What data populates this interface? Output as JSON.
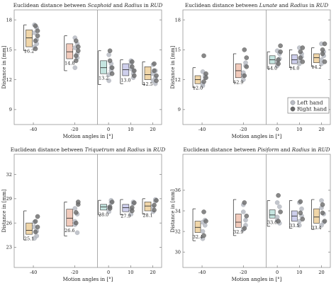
{
  "figure": {
    "legend": {
      "items": [
        {
          "label": "Left hand",
          "color": "#b9bcc4"
        },
        {
          "label": "Right hand",
          "color": "#6a6a6a"
        }
      ]
    }
  },
  "colors": {
    "box": [
      "#e3b463",
      "#e8a085",
      "#95cfc6",
      "#a6a7dc"
    ],
    "gray_left": "#b9bcc4",
    "gray_right": "#6a6a6a"
  },
  "chart_data": [
    {
      "type": "box",
      "title_parts": [
        {
          "t": "Euclidean distance between ",
          "i": false
        },
        {
          "t": "Scaphoid",
          "i": true
        },
        {
          "t": " and ",
          "i": false
        },
        {
          "t": "Radius",
          "i": true
        },
        {
          "t": " in ",
          "i": false
        },
        {
          "t": "RUD",
          "i": true
        }
      ],
      "xlabel": "Motion angles in [°]",
      "ylabel": "Distance in [mm]",
      "ylim": [
        7.5,
        19
      ],
      "yticks": [
        "9",
        "12",
        "15",
        "18"
      ],
      "categories": [
        "-40",
        "-20",
        "0",
        "10",
        "20"
      ],
      "medians": [
        16.2,
        14.8,
        13.2,
        13.0,
        12.5
      ],
      "median_labels": [
        "16.2",
        "14.8",
        "13.2",
        "13.0",
        "12.5"
      ],
      "box_q": [
        [
          15.3,
          17.0
        ],
        [
          14.1,
          15.6
        ],
        [
          12.6,
          13.9
        ],
        [
          12.4,
          13.6
        ],
        [
          12.0,
          13.3
        ]
      ],
      "whiskers": [
        [
          14.9,
          17.5
        ],
        [
          12.9,
          16.4
        ],
        [
          11.5,
          14.9
        ],
        [
          11.6,
          14.0
        ],
        [
          11.5,
          13.8
        ]
      ],
      "left_hand": [
        [
          16.7,
          15.6,
          17.5,
          16.0,
          15.3,
          17.2
        ],
        [
          16.2,
          14.2,
          15.2,
          15.6,
          13.2,
          14.6
        ],
        [
          14.5,
          13.2,
          12.5,
          13.6,
          11.9,
          12.9
        ],
        [
          13.6,
          12.6,
          13.9,
          12.2,
          13.1,
          12.9
        ],
        [
          13.5,
          12.2,
          11.9,
          12.9,
          12.6,
          11.6
        ]
      ],
      "right_hand": [
        [
          17.4,
          16.4,
          15.1,
          16.9,
          15.9
        ],
        [
          15.9,
          14.9,
          13.9,
          15.3,
          14.4
        ],
        [
          13.9,
          12.6,
          14.9,
          13.2
        ],
        [
          13.3,
          12.4,
          13.8,
          12.9
        ],
        [
          13.6,
          12.4,
          12.9,
          11.9
        ]
      ],
      "show_legend": false
    },
    {
      "type": "box",
      "title_parts": [
        {
          "t": "Euclidean distance between ",
          "i": false
        },
        {
          "t": "Lunate",
          "i": true
        },
        {
          "t": " and ",
          "i": false
        },
        {
          "t": "Radius",
          "i": true
        },
        {
          "t": " in ",
          "i": false
        },
        {
          "t": "RUD",
          "i": true
        }
      ],
      "xlabel": "Motion angles in [°]",
      "ylabel": "Distance in [mm]",
      "ylim": [
        7.5,
        19
      ],
      "yticks": [
        "9",
        "12",
        "15",
        "18"
      ],
      "categories": [
        "-40",
        "-20",
        "0",
        "10",
        "20"
      ],
      "medians": [
        12.0,
        12.9,
        14.0,
        14.0,
        14.2
      ],
      "median_labels": [
        "12.0",
        "12.9",
        "14.0",
        "14.0",
        "14.2"
      ],
      "box_q": [
        [
          11.6,
          12.4
        ],
        [
          12.2,
          13.6
        ],
        [
          13.6,
          14.4
        ],
        [
          13.6,
          14.5
        ],
        [
          13.7,
          14.6
        ]
      ],
      "whiskers": [
        [
          11.2,
          13.2
        ],
        [
          11.7,
          14.6
        ],
        [
          13.1,
          14.8
        ],
        [
          13.2,
          15.0
        ],
        [
          13.3,
          15.2
        ]
      ],
      "left_hand": [
        [
          11.4,
          12.2,
          11.6,
          12.4,
          12.8
        ],
        [
          12.4,
          13.4,
          12.0,
          13.7,
          12.7
        ],
        [
          13.8,
          14.6,
          13.4,
          14.1,
          14.9
        ],
        [
          13.9,
          14.6,
          13.6,
          14.3,
          15.2
        ],
        [
          14.0,
          14.8,
          13.6,
          14.4,
          15.6
        ]
      ],
      "right_hand": [
        [
          14.4,
          12.6,
          11.8,
          12.2
        ],
        [
          15.0,
          13.3,
          12.4,
          14.2
        ],
        [
          14.0,
          14.8,
          13.6,
          15.4
        ],
        [
          14.2,
          13.8,
          14.8,
          15.2
        ],
        [
          14.6,
          13.8,
          15.0,
          15.6
        ]
      ],
      "show_legend": true
    },
    {
      "type": "box",
      "title_parts": [
        {
          "t": "Euclidean distance between ",
          "i": false
        },
        {
          "t": "Triquetrum",
          "i": true
        },
        {
          "t": " and ",
          "i": false
        },
        {
          "t": "Radius",
          "i": true
        },
        {
          "t": " in ",
          "i": false
        },
        {
          "t": "RUD",
          "i": true
        }
      ],
      "xlabel": "Motion angles in [°]",
      "ylabel": "Distance in [mm]",
      "ylim": [
        20.5,
        34.5
      ],
      "yticks": [
        "23",
        "26",
        "29",
        "32"
      ],
      "categories": [
        "-40",
        "-20",
        "0",
        "10",
        "20"
      ],
      "medians": [
        25.1,
        26.6,
        28.0,
        27.9,
        28.1
      ],
      "median_labels": [
        "25.1",
        "26.6",
        "28.0",
        "27.9",
        "28.1"
      ],
      "box_q": [
        [
          24.6,
          26.0
        ],
        [
          25.6,
          27.7
        ],
        [
          27.6,
          28.3
        ],
        [
          27.4,
          28.3
        ],
        [
          27.5,
          28.6
        ]
      ],
      "whiskers": [
        [
          23.9,
          27.5
        ],
        [
          24.4,
          28.6
        ],
        [
          27.0,
          28.8
        ],
        [
          27.0,
          28.9
        ],
        [
          27.1,
          29.0
        ]
      ],
      "left_hand": [
        [
          25.5,
          24.4,
          26.1,
          25.0,
          24.1
        ],
        [
          25.8,
          27.1,
          26.2,
          24.8,
          27.8
        ],
        [
          27.9,
          28.5,
          27.4,
          28.8
        ],
        [
          27.7,
          28.4,
          27.1,
          28.6
        ],
        [
          28.0,
          28.7,
          27.4,
          28.9
        ]
      ],
      "right_hand": [
        [
          26.2,
          25.5,
          24.9,
          26.8
        ],
        [
          27.3,
          28.3,
          26.0,
          28.6
        ],
        [
          28.0,
          28.6,
          27.8
        ],
        [
          27.9,
          28.5,
          27.5
        ],
        [
          28.2,
          28.8,
          27.6
        ]
      ],
      "show_legend": false
    },
    {
      "type": "box",
      "title_parts": [
        {
          "t": "Euclidean distance between ",
          "i": false
        },
        {
          "t": "Pisiform",
          "i": true
        },
        {
          "t": " and ",
          "i": false
        },
        {
          "t": "Radius",
          "i": true
        },
        {
          "t": " in ",
          "i": false
        },
        {
          "t": "RUD",
          "i": true
        }
      ],
      "xlabel": "Motion angles in [°]",
      "ylabel": "Distance in [mm]",
      "ylim": [
        28.5,
        39.5
      ],
      "yticks": [
        "30",
        "32",
        "34",
        "36"
      ],
      "categories": [
        "-40",
        "-20",
        "0",
        "10",
        "20"
      ],
      "medians": [
        32.4,
        32.9,
        33.6,
        33.5,
        33.4
      ],
      "median_labels": [
        "32.4",
        "32.9",
        "33.6",
        "33.5",
        "33.4"
      ],
      "box_q": [
        [
          31.9,
          33.0
        ],
        [
          32.4,
          33.7
        ],
        [
          33.3,
          34.1
        ],
        [
          33.0,
          34.0
        ],
        [
          32.8,
          34.2
        ]
      ],
      "whiskers": [
        [
          31.1,
          34.2
        ],
        [
          31.6,
          35.1
        ],
        [
          32.5,
          35.0
        ],
        [
          32.3,
          35.0
        ],
        [
          32.2,
          35.1
        ]
      ],
      "left_hand": [
        [
          32.0,
          32.6,
          31.3,
          33.1,
          32.9
        ],
        [
          32.2,
          33.1,
          34.6,
          32.6,
          33.9
        ],
        [
          33.1,
          34.4,
          33.4,
          32.8,
          34.8
        ],
        [
          33.0,
          34.2,
          32.6,
          33.5,
          34.8
        ],
        [
          32.6,
          33.7,
          34.3,
          32.9,
          35.0
        ]
      ],
      "right_hand": [
        [
          33.9,
          33.0,
          31.6
        ],
        [
          34.8,
          33.5,
          32.3
        ],
        [
          35.5,
          33.9,
          33.0
        ],
        [
          34.9,
          33.2,
          33.8
        ],
        [
          34.6,
          33.0,
          33.8
        ]
      ],
      "show_legend": false
    }
  ]
}
